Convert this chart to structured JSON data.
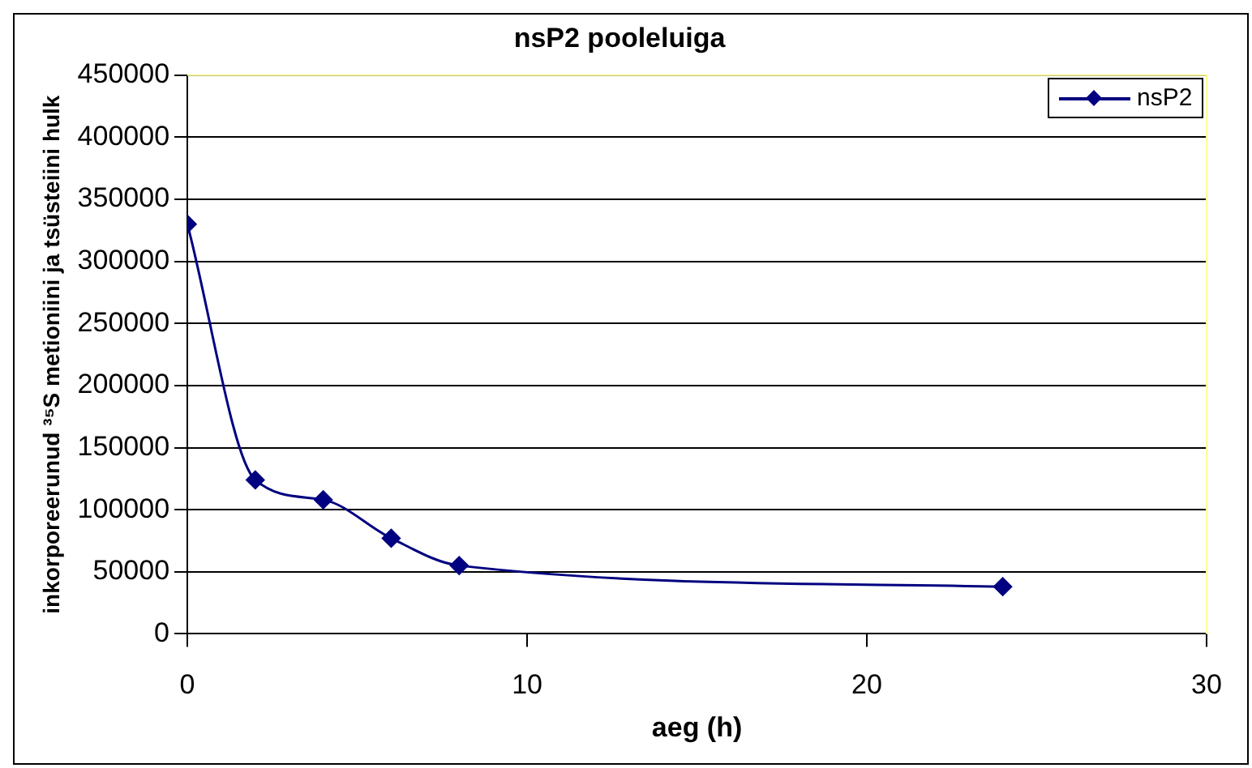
{
  "chart_data": {
    "type": "line",
    "title": "nsP2 pooleluiga",
    "xlabel": "aeg (h)",
    "ylabel": "inkorporeerunud ³⁵S metioniini ja tsüsteiini hulk",
    "x": [
      0,
      2,
      4,
      6,
      8,
      24
    ],
    "series": [
      {
        "name": "nsP2",
        "color": "#000080",
        "values": [
          330000,
          124000,
          108000,
          77000,
          55000,
          38000
        ]
      }
    ],
    "xlim": [
      0,
      30
    ],
    "xticks": [
      0,
      10,
      20,
      30
    ],
    "ylim": [
      0,
      450000
    ],
    "yticks": [
      0,
      50000,
      100000,
      150000,
      200000,
      250000,
      300000,
      350000,
      400000,
      450000
    ],
    "grid": "y",
    "legend": "top right",
    "marker": "diamond",
    "line_style": "solid"
  }
}
